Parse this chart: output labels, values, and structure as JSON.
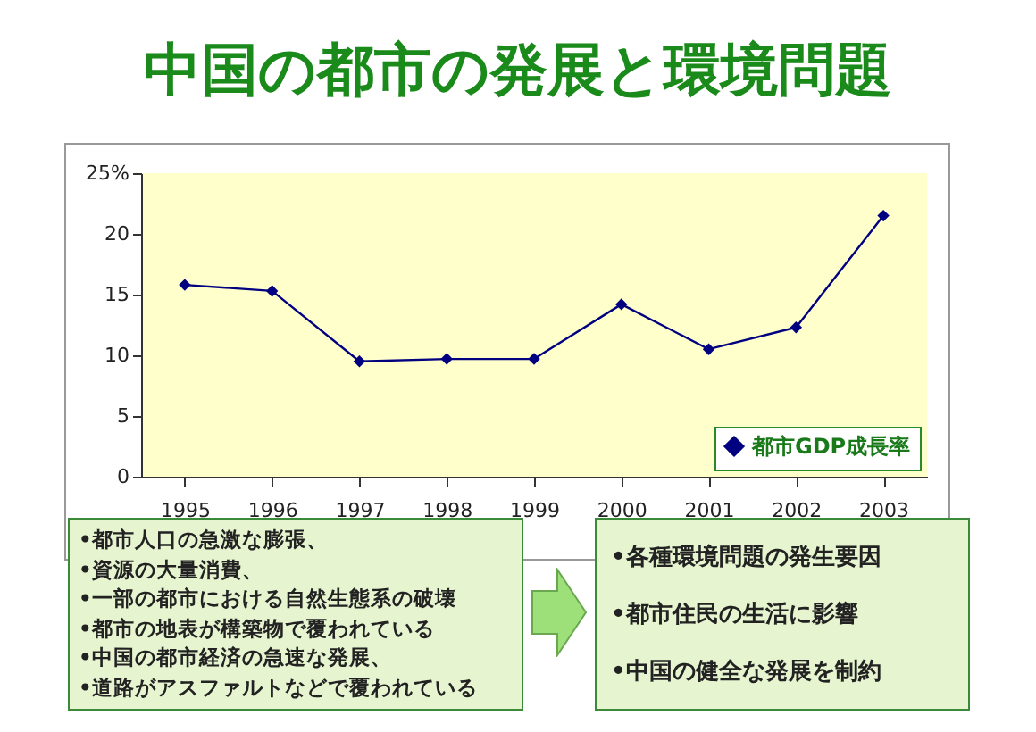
{
  "chart_data": {
    "type": "line",
    "title": "中国の都市の発展と環境問題",
    "categories": [
      "1995",
      "1996",
      "1997",
      "1998",
      "1999",
      "2000",
      "2001",
      "2002",
      "2003"
    ],
    "series": [
      {
        "name": "都市GDP成長率",
        "color": "#000080",
        "values": [
          15.8,
          15.3,
          9.5,
          9.7,
          9.7,
          14.2,
          10.5,
          12.3,
          21.5
        ]
      }
    ],
    "ylim": [
      0,
      25
    ],
    "yticks": [
      0,
      5,
      10,
      15,
      20,
      {
        "value": 25,
        "label": "25%"
      }
    ],
    "grid": false,
    "legend": "bottom right",
    "marker": "diamond",
    "line_style": "solid",
    "annotations": [
      "•都市人口の急激な膨張、",
      "•資源の大量消費、",
      "•一部の都市における自然生態系の破壊",
      "•都市の地表が構築物で覆われている",
      "•中国の都市経済の急速な発展、",
      "•道路がアスファルトなどで覆われている",
      "•各種環境問題の発生要因",
      "•都市住民の生活に影響",
      "•中国の健全な発展を制約"
    ]
  }
}
